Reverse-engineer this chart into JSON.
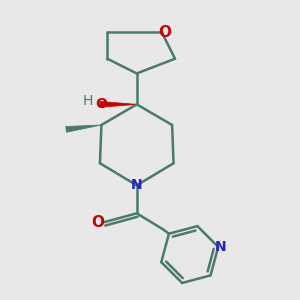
{
  "bg_color": "#e8e8e8",
  "bond_color": "#4a7a6a",
  "N_color": "#2222cc",
  "O_color": "#cc0000",
  "line_width": 1.8,
  "fig_size": [
    3.0,
    3.0
  ],
  "dpi": 100,
  "xlim": [
    0,
    10
  ],
  "ylim": [
    0,
    10
  ]
}
